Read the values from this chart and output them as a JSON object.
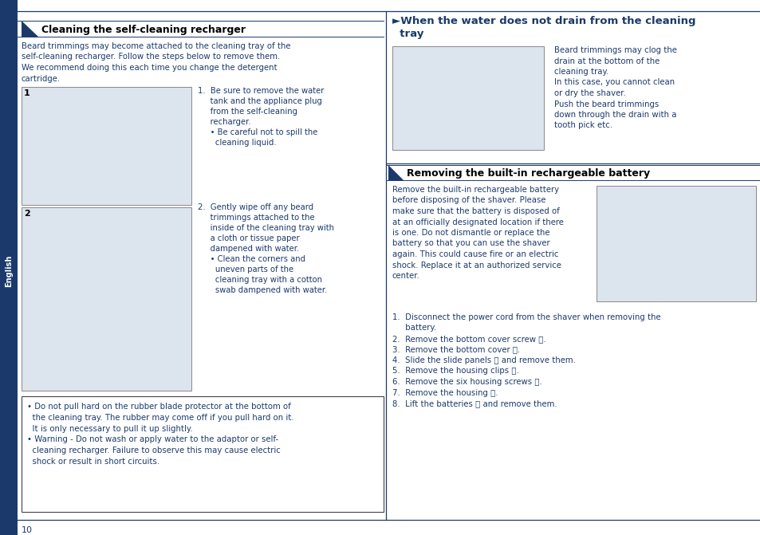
{
  "bg_color": "#ffffff",
  "dark_blue": "#1b3a6b",
  "text_color": "#1b3a6b",
  "border_color": "#1b3a6b",
  "image_bg": "#dce4ed",
  "page_num": "10",
  "left_tab_text": "English",
  "section1_title": "Cleaning the self-cleaning recharger",
  "section1_intro_lines": [
    "Beard trimmings may become attached to the cleaning tray of the",
    "self-cleaning recharger. Follow the steps below to remove them.",
    "We recommend doing this each time you change the detergent",
    "cartridge."
  ],
  "step1_lines": [
    "1.  Be sure to remove the water",
    "     tank and the appliance plug",
    "     from the self-cleaning",
    "     recharger.",
    "     • Be careful not to spill the",
    "       cleaning liquid."
  ],
  "step2_lines": [
    "2.  Gently wipe off any beard",
    "     trimmings attached to the",
    "     inside of the cleaning tray with",
    "     a cloth or tissue paper",
    "     dampened with water.",
    "     • Clean the corners and",
    "       uneven parts of the",
    "       cleaning tray with a cotton",
    "       swab dampened with water."
  ],
  "warning_lines": [
    "• Do not pull hard on the rubber blade protector at the bottom of",
    "  the cleaning tray. The rubber may come off if you pull hard on it.",
    "  It is only necessary to pull it up slightly.",
    "• Warning - Do not wash or apply water to the adaptor or self-",
    "  cleaning recharger. Failure to observe this may cause electric",
    "  shock or result in short circuits."
  ],
  "section2_title_line1": "►When the water does not drain from the cleaning",
  "section2_title_line2": "  tray",
  "section2_body_lines": [
    "Beard trimmings may clog the",
    "drain at the bottom of the",
    "cleaning tray.",
    "In this case, you cannot clean",
    "or dry the shaver.",
    "Push the beard trimmings",
    "down through the drain with a",
    "tooth pick etc."
  ],
  "section3_title": "Removing the built-in rechargeable battery",
  "section3_body_lines": [
    "Remove the built-in rechargeable battery",
    "before disposing of the shaver. Please",
    "make sure that the battery is disposed of",
    "at an officially designated location if there",
    "is one. Do not dismantle or replace the",
    "battery so that you can use the shaver",
    "again. This could cause fire or an electric",
    "shock. Replace it at an authorized service",
    "center."
  ],
  "section3_steps": [
    "1.  Disconnect the power cord from the shaver when removing the",
    "     battery.",
    "2.  Remove the bottom cover screw ⓐ.",
    "3.  Remove the bottom cover ⓑ.",
    "4.  Slide the slide panels ⓒ and remove them.",
    "5.  Remove the housing clips ⓓ.",
    "6.  Remove the six housing screws ⓔ.",
    "7.  Remove the housing ⓕ.",
    "8.  Lift the batteries ⓖ and remove them."
  ]
}
